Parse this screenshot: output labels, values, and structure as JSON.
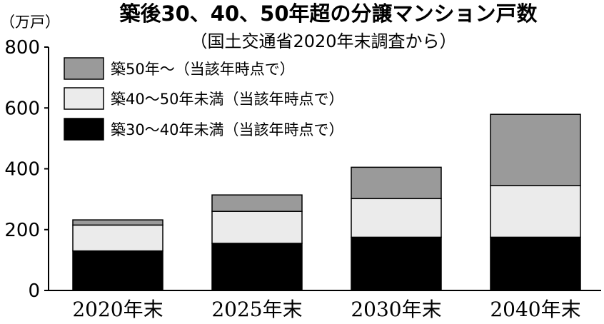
{
  "chart_data": {
    "type": "bar",
    "stacked": true,
    "title": "築後30、40、50年超の分譲マンション戸数",
    "subtitle": "（国土交通省2020年末調査から）",
    "ylabel": "（万戸）",
    "xlabel": "",
    "ylim": [
      0,
      800
    ],
    "yticks": [
      "0",
      "200",
      "400",
      "600",
      "800"
    ],
    "grid": false,
    "legend_position": "top-left",
    "categories": [
      "2020年末",
      "2025年末",
      "2030年末",
      "2040年末"
    ],
    "series": [
      {
        "name": "築30〜40年未満（当該年時点で）",
        "color": "#000000",
        "values": [
          130,
          155,
          175,
          175
        ]
      },
      {
        "name": "築40〜50年未満（当該年時点で）",
        "color": "#ebebeb",
        "values": [
          85,
          105,
          127,
          170
        ]
      },
      {
        "name": "築50年〜（当該年時点で）",
        "color": "#9a9a9a",
        "values": [
          17,
          54,
          103,
          234
        ]
      }
    ],
    "legend_order": [
      2,
      1,
      0
    ]
  }
}
